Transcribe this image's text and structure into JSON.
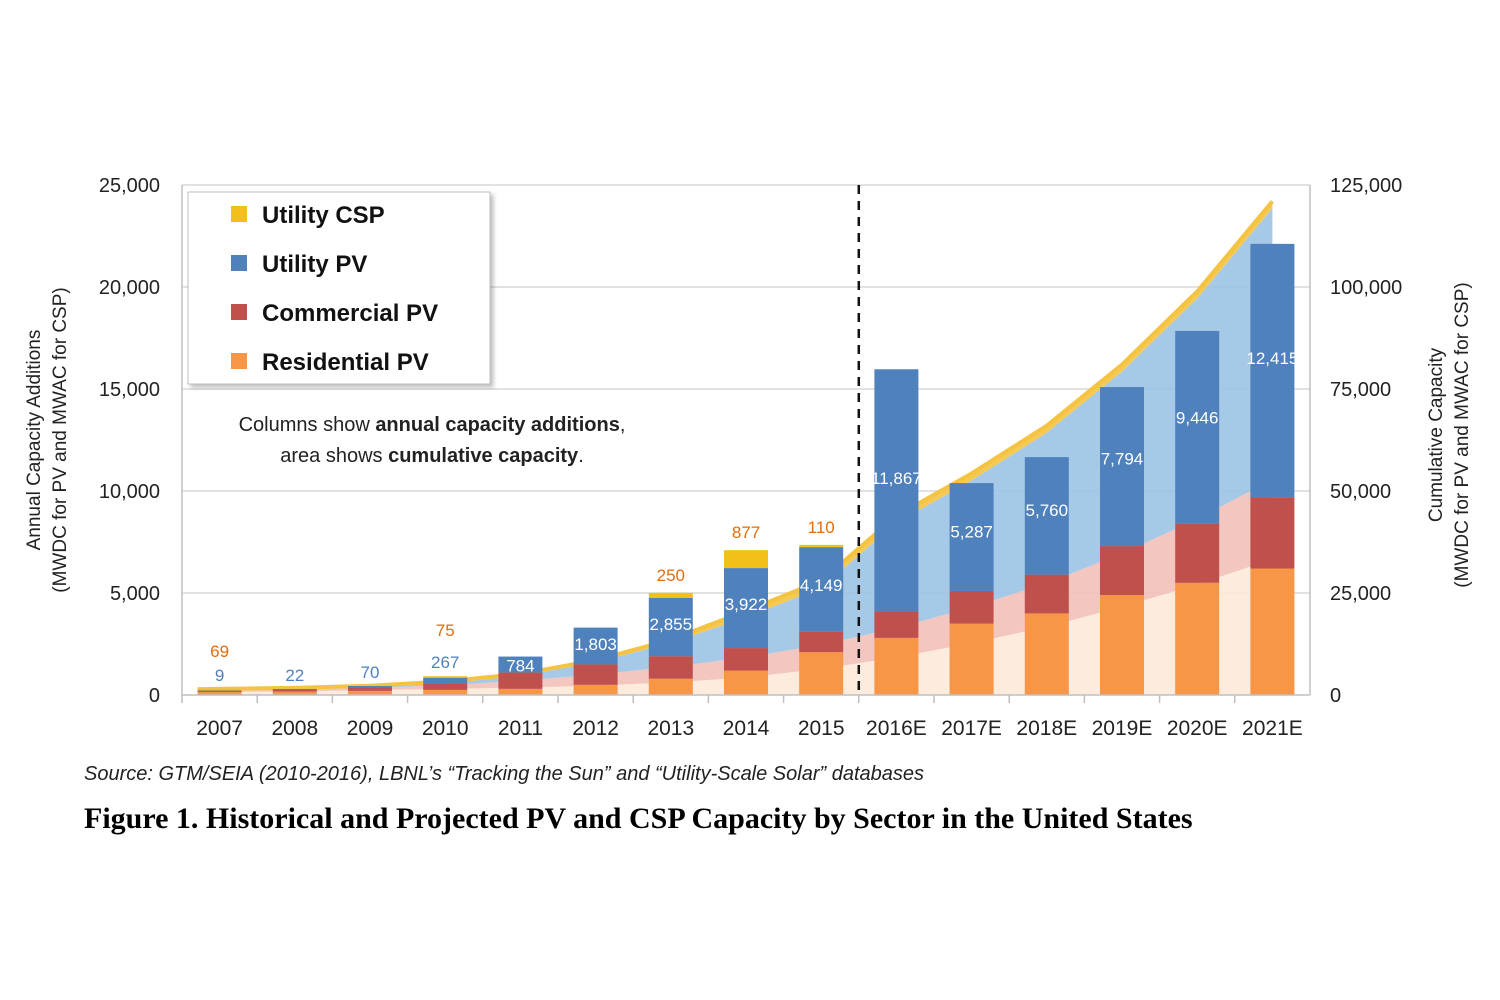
{
  "figure": {
    "source": "Source:  GTM/SEIA (2010-2016), LBNL’s “Tracking the Sun” and “Utility-Scale Solar” databases",
    "caption": "Figure 1. Historical and Projected PV and CSP Capacity by Sector in the United States"
  },
  "annotation": {
    "line1_prefix": "Columns show ",
    "line1_bold": "annual capacity additions",
    "line1_suffix": ",",
    "line2_prefix": "area shows ",
    "line2_bold": "cumulative capacity",
    "line2_suffix": "."
  },
  "colors": {
    "residential": "#f79646",
    "commercial": "#c0504d",
    "utility_pv": "#4f81bd",
    "utility_csp": "#f2c018",
    "area_residential": "#fde9d9",
    "area_commercial": "#f2c0b8",
    "area_utility": "#9dc3e6",
    "area_line": "#f5c342",
    "grid": "#d9d9d9",
    "label_utility": "#4f81bd",
    "label_csp": "#e46c0a"
  },
  "chart_data": {
    "type": "bar",
    "stacked": true,
    "projection_divider_after": "2015",
    "categories": [
      "2007",
      "2008",
      "2009",
      "2010",
      "2011",
      "2012",
      "2013",
      "2014",
      "2015",
      "2016E",
      "2017E",
      "2018E",
      "2019E",
      "2020E",
      "2021E"
    ],
    "y_left": {
      "label_line1": "Annual Capacity Additions",
      "label_line2": "(MWDC for PV and MWAC for CSP)",
      "ylim": [
        0,
        25000
      ],
      "ticks": [
        "0",
        "5,000",
        "10,000",
        "15,000",
        "20,000",
        "25,000"
      ]
    },
    "y_right": {
      "label_line1": "Cumulative Capacity",
      "label_line2": "(MWDC for PV and MWAC for CSP)",
      "ylim": [
        0,
        125000
      ],
      "ticks": [
        "0",
        "25,000",
        "50,000",
        "75,000",
        "100,000",
        "125,000"
      ]
    },
    "series": [
      {
        "name": "Residential PV",
        "values": [
          150,
          170,
          200,
          250,
          300,
          500,
          800,
          1200,
          2100,
          2800,
          3500,
          4000,
          4900,
          5500,
          6200
        ]
      },
      {
        "name": "Commercial PV",
        "values": [
          60,
          100,
          170,
          330,
          800,
          1000,
          1100,
          1100,
          1000,
          1300,
          1600,
          1900,
          2400,
          2900,
          3500
        ]
      },
      {
        "name": "Utility PV",
        "values": [
          9,
          22,
          70,
          267,
          784,
          1803,
          2855,
          3922,
          4149,
          11867,
          5287,
          5760,
          7794,
          9446,
          12415
        ]
      },
      {
        "name": "Utility CSP",
        "values": [
          69,
          0,
          0,
          75,
          0,
          0,
          250,
          877,
          110,
          0,
          0,
          0,
          0,
          0,
          0
        ]
      }
    ],
    "bar_labels": {
      "utility_pv": [
        "9",
        "22",
        "70",
        "267",
        "784",
        "1,803",
        "2,855",
        "3,922",
        "4,149",
        "11,867",
        "5,287",
        "5,760",
        "7,794",
        "9,446",
        "12,415"
      ],
      "utility_csp": [
        "69",
        "",
        "",
        "75",
        "",
        "",
        "250",
        "877",
        "110",
        "",
        "",
        "",
        "",
        "",
        ""
      ]
    },
    "cumulative_area": {
      "residential": [
        700,
        900,
        1200,
        1500,
        1800,
        2300,
        3100,
        4300,
        6400,
        9200,
        12700,
        16700,
        21600,
        27100,
        33300
      ],
      "commercial": [
        300,
        400,
        550,
        900,
        1700,
        2700,
        3800,
        4900,
        5900,
        7200,
        8800,
        10700,
        13100,
        16000,
        19500
      ],
      "utility_pv": [
        20,
        40,
        100,
        400,
        1200,
        3000,
        5900,
        9800,
        14000,
        25800,
        31100,
        36900,
        44600,
        54100,
        66500
      ],
      "utility_csp": [
        420,
        420,
        420,
        500,
        500,
        500,
        750,
        1600,
        1700,
        1700,
        1700,
        1700,
        1700,
        1700,
        1700
      ]
    }
  }
}
